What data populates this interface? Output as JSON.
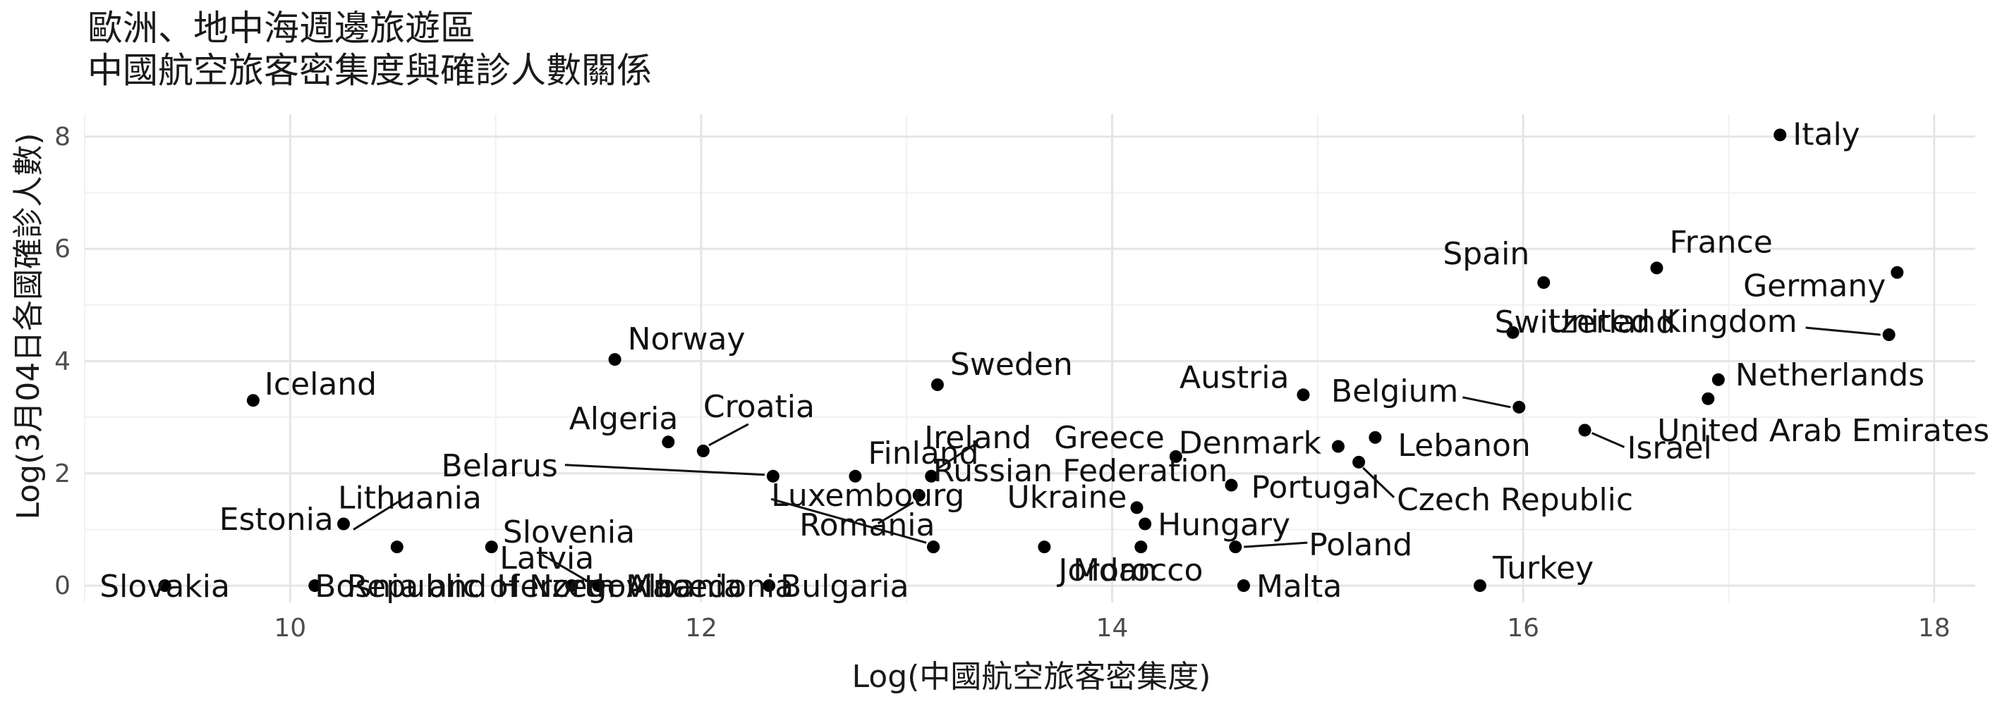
{
  "chart_data": {
    "type": "scatter",
    "title": "歐洲、地中海週邊旅遊區",
    "subtitle": "中國航空旅客密集度與確診人數關係",
    "xlabel": "Log(中國航空旅客密集度)",
    "ylabel": "Log(3月04日各國確診人數)",
    "xlim": [
      9,
      18.2
    ],
    "ylim": [
      -0.3,
      8.4
    ],
    "xticks": [
      10,
      12,
      14,
      16,
      18
    ],
    "yticks": [
      0,
      2,
      4,
      6,
      8
    ],
    "grid": true,
    "legend": "none",
    "point_color": "#000000",
    "points": [
      {
        "name": "Italy",
        "x": 17.25,
        "y": 8.03
      },
      {
        "name": "France",
        "x": 16.65,
        "y": 5.66
      },
      {
        "name": "Germany",
        "x": 17.82,
        "y": 5.58
      },
      {
        "name": "Spain",
        "x": 16.1,
        "y": 5.4
      },
      {
        "name": "United Kingdom",
        "x": 17.78,
        "y": 4.47
      },
      {
        "name": "Switzerland",
        "x": 15.95,
        "y": 4.51
      },
      {
        "name": "Netherlands",
        "x": 16.95,
        "y": 3.67
      },
      {
        "name": "United Arab Emirates",
        "x": 16.9,
        "y": 3.33
      },
      {
        "name": "Austria",
        "x": 14.93,
        "y": 3.4
      },
      {
        "name": "Belgium",
        "x": 15.98,
        "y": 3.18
      },
      {
        "name": "Israel",
        "x": 16.3,
        "y": 2.77
      },
      {
        "name": "Lebanon",
        "x": 15.28,
        "y": 2.64
      },
      {
        "name": "Denmark",
        "x": 15.1,
        "y": 2.48
      },
      {
        "name": "Czech Republic",
        "x": 15.2,
        "y": 2.2
      },
      {
        "name": "Greece",
        "x": 14.31,
        "y": 2.3
      },
      {
        "name": "Portugal",
        "x": 14.58,
        "y": 1.79
      },
      {
        "name": "Norway",
        "x": 11.58,
        "y": 4.03
      },
      {
        "name": "Sweden",
        "x": 13.15,
        "y": 3.58
      },
      {
        "name": "Iceland",
        "x": 9.82,
        "y": 3.3
      },
      {
        "name": "Algeria",
        "x": 11.84,
        "y": 2.56
      },
      {
        "name": "Croatia",
        "x": 12.01,
        "y": 2.4
      },
      {
        "name": "Belarus",
        "x": 12.35,
        "y": 1.95
      },
      {
        "name": "Finland",
        "x": 12.75,
        "y": 1.95
      },
      {
        "name": "Ireland",
        "x": 13.12,
        "y": 1.95
      },
      {
        "name": "Russian Federation",
        "x": 13.06,
        "y": 1.61
      },
      {
        "name": "Luxembourg",
        "x": 13.13,
        "y": 0.69
      },
      {
        "name": "Romania",
        "x": 13.13,
        "y": 0.69
      },
      {
        "name": "Jordan",
        "x": 13.67,
        "y": 0.69
      },
      {
        "name": "Ukraine",
        "x": 14.12,
        "y": 1.39
      },
      {
        "name": "Hungary",
        "x": 14.16,
        "y": 1.1
      },
      {
        "name": "Morocco",
        "x": 14.14,
        "y": 0.69
      },
      {
        "name": "Poland",
        "x": 14.6,
        "y": 0.69
      },
      {
        "name": "Malta",
        "x": 14.64,
        "y": 0
      },
      {
        "name": "Turkey",
        "x": 15.79,
        "y": 0
      },
      {
        "name": "Lithuania",
        "x": 10.26,
        "y": 1.1
      },
      {
        "name": "Estonia",
        "x": 10.52,
        "y": 0.69
      },
      {
        "name": "Slovenia",
        "x": 10.98,
        "y": 0.69
      },
      {
        "name": "Latvia",
        "x": 11.5,
        "y": 0
      },
      {
        "name": "Albania",
        "x": 11.5,
        "y": 0
      },
      {
        "name": "Bulgaria",
        "x": 12.33,
        "y": 0
      },
      {
        "name": "Slovakia",
        "x": 9.39,
        "y": 0
      },
      {
        "name": "Bosnia and Herzegovina",
        "x": 10.12,
        "y": 0
      },
      {
        "name": "Republic of North Macedonia",
        "x": 11.37,
        "y": 0
      }
    ]
  }
}
